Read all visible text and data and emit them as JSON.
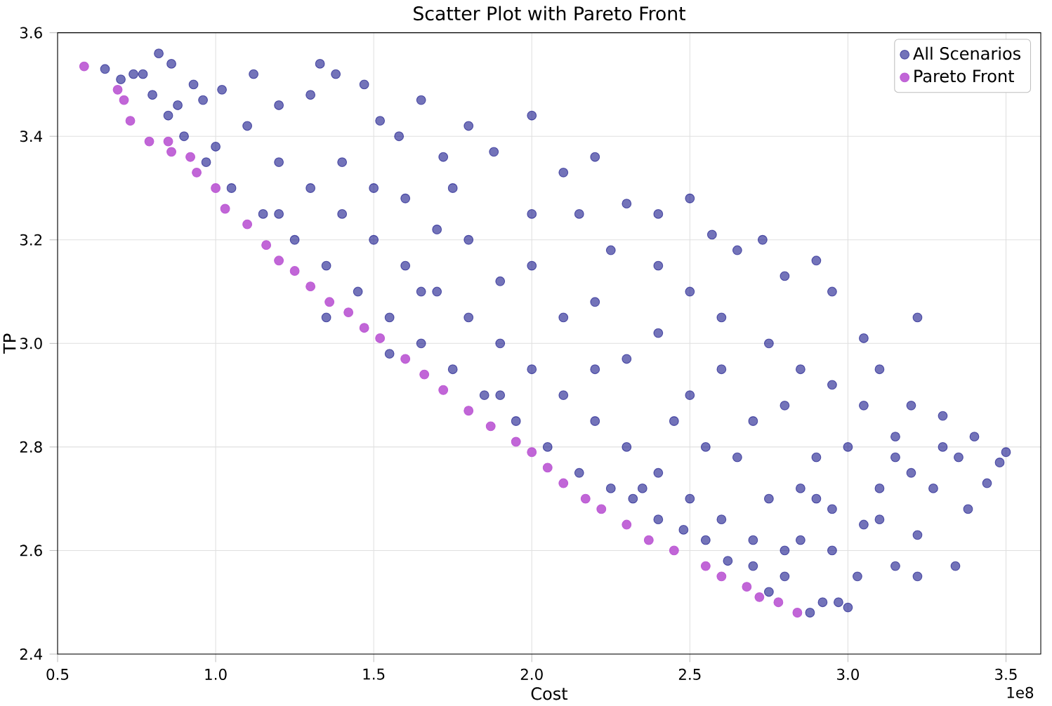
{
  "chart_data": {
    "type": "scatter",
    "title": "Scatter Plot with Pareto Front",
    "xlabel": "Cost",
    "ylabel": "TP",
    "annotations": [
      "1e8"
    ],
    "xlim": [
      0.5,
      3.61
    ],
    "ylim": [
      2.4,
      3.6
    ],
    "xticks": [
      {
        "value": 0.5,
        "label": "0.5"
      },
      {
        "value": 1,
        "label": "1.0"
      },
      {
        "value": 1.5,
        "label": "1.5"
      },
      {
        "value": 2,
        "label": "2.0"
      },
      {
        "value": 2.5,
        "label": "2.5"
      },
      {
        "value": 3,
        "label": "3.0"
      },
      {
        "value": 3.5,
        "label": "3.5"
      }
    ],
    "yticks": [
      {
        "value": 2.4,
        "label": "2.4"
      },
      {
        "value": 2.6,
        "label": "2.6"
      },
      {
        "value": 2.8,
        "label": "2.8"
      },
      {
        "value": 3.0,
        "label": "3.0"
      },
      {
        "value": 3.2,
        "label": "3.2"
      },
      {
        "value": 3.4,
        "label": "3.4"
      },
      {
        "value": 3.6,
        "label": "3.6"
      }
    ],
    "grid": true,
    "legend": "top right",
    "marker": "circle",
    "series": [
      {
        "name": "All Scenarios",
        "color": "#000080",
        "x": [
          0.65,
          0.7,
          0.74,
          0.77,
          0.82,
          0.86,
          0.8,
          0.85,
          0.88,
          0.93,
          0.96,
          1.02,
          1.12,
          1.2,
          1.3,
          1.33,
          1.38,
          1.47,
          1.52,
          1.65,
          1.58,
          1.72,
          1.8,
          1.88,
          2.0,
          2.1,
          2.2,
          2.3,
          2.4,
          2.5,
          2.57,
          2.65,
          2.73,
          2.8,
          2.9,
          2.95,
          3.05,
          3.1,
          3.22,
          3.2,
          3.3,
          3.4,
          3.5,
          3.48,
          3.44,
          3.38,
          3.35,
          3.34,
          3.27,
          3.22,
          3.22,
          3.15,
          3.1,
          3.05,
          3.03,
          3.0,
          2.97,
          2.92,
          2.88,
          2.95,
          2.9,
          2.85,
          2.8,
          2.75,
          2.7,
          2.62,
          2.55,
          2.48,
          2.4,
          2.32,
          2.25,
          2.15,
          2.05,
          1.95,
          1.85,
          1.75,
          1.65,
          1.55,
          1.45,
          1.35,
          1.25,
          1.15,
          1.05,
          0.97,
          0.9,
          1.0,
          1.1,
          1.2,
          1.3,
          1.4,
          1.5,
          1.6,
          1.7,
          1.8,
          1.9,
          2.0,
          2.1,
          2.2,
          2.3,
          2.4,
          2.5,
          2.6,
          2.7,
          2.8,
          1.2,
          1.4,
          1.6,
          1.8,
          2.0,
          2.2,
          2.4,
          2.6,
          2.8,
          3.0,
          3.2,
          1.5,
          1.7,
          1.9,
          2.1,
          2.3,
          2.5,
          2.7,
          2.9,
          3.1,
          1.75,
          2.0,
          2.25,
          2.5,
          2.75,
          2.95,
          3.15,
          2.15,
          2.4,
          2.6,
          2.85,
          3.05,
          2.2,
          2.45,
          2.65,
          2.85,
          1.35,
          1.55,
          1.65,
          1.9,
          2.35,
          2.55,
          2.75,
          2.95,
          3.15,
          3.3
        ],
        "values": [
          3.53,
          3.51,
          3.52,
          3.52,
          3.56,
          3.54,
          3.48,
          3.44,
          3.46,
          3.5,
          3.47,
          3.49,
          3.52,
          3.46,
          3.48,
          3.54,
          3.52,
          3.5,
          3.43,
          3.47,
          3.4,
          3.36,
          3.42,
          3.37,
          3.44,
          3.33,
          3.36,
          3.27,
          3.25,
          3.28,
          3.21,
          3.18,
          3.2,
          3.13,
          3.16,
          3.1,
          3.01,
          2.95,
          3.05,
          2.88,
          2.86,
          2.82,
          2.79,
          2.77,
          2.73,
          2.68,
          2.78,
          2.57,
          2.72,
          2.63,
          2.55,
          2.57,
          2.66,
          2.65,
          2.55,
          2.49,
          2.5,
          2.5,
          2.48,
          2.6,
          2.7,
          2.62,
          2.55,
          2.52,
          2.57,
          2.58,
          2.62,
          2.64,
          2.66,
          2.7,
          2.72,
          2.75,
          2.8,
          2.85,
          2.9,
          2.95,
          3.0,
          3.05,
          3.1,
          3.15,
          3.2,
          3.25,
          3.3,
          3.35,
          3.4,
          3.38,
          3.42,
          3.35,
          3.3,
          3.25,
          3.2,
          3.15,
          3.1,
          3.05,
          3.0,
          2.95,
          2.9,
          2.85,
          2.8,
          2.75,
          2.7,
          2.66,
          2.62,
          2.6,
          3.25,
          3.35,
          3.28,
          3.2,
          3.15,
          3.08,
          3.02,
          2.95,
          2.88,
          2.8,
          2.75,
          3.3,
          3.22,
          3.12,
          3.05,
          2.97,
          2.9,
          2.85,
          2.78,
          2.72,
          3.3,
          3.25,
          3.18,
          3.1,
          3.0,
          2.92,
          2.82,
          3.25,
          3.15,
          3.05,
          2.95,
          2.88,
          2.95,
          2.85,
          2.78,
          2.72,
          3.05,
          2.98,
          3.1,
          2.9,
          2.72,
          2.8,
          2.7,
          2.68,
          2.78,
          2.8
        ]
      },
      {
        "name": "Pareto Front",
        "color": "#ba55d3",
        "x": [
          0.584,
          0.69,
          0.71,
          0.73,
          0.79,
          0.85,
          0.86,
          0.92,
          0.94,
          1.0,
          1.03,
          1.1,
          1.16,
          1.2,
          1.25,
          1.3,
          1.36,
          1.42,
          1.47,
          1.52,
          1.6,
          1.66,
          1.72,
          1.8,
          1.87,
          1.95,
          2.0,
          2.05,
          2.1,
          2.17,
          2.22,
          2.3,
          2.37,
          2.45,
          2.55,
          2.6,
          2.68,
          2.72,
          2.78,
          2.84
        ],
        "values": [
          3.535,
          3.49,
          3.47,
          3.43,
          3.39,
          3.39,
          3.37,
          3.36,
          3.33,
          3.3,
          3.26,
          3.23,
          3.19,
          3.16,
          3.14,
          3.11,
          3.08,
          3.06,
          3.03,
          3.01,
          2.97,
          2.94,
          2.91,
          2.87,
          2.84,
          2.81,
          2.79,
          2.76,
          2.73,
          2.7,
          2.68,
          2.65,
          2.62,
          2.6,
          2.57,
          2.55,
          2.53,
          2.51,
          2.5,
          2.48
        ]
      }
    ]
  }
}
